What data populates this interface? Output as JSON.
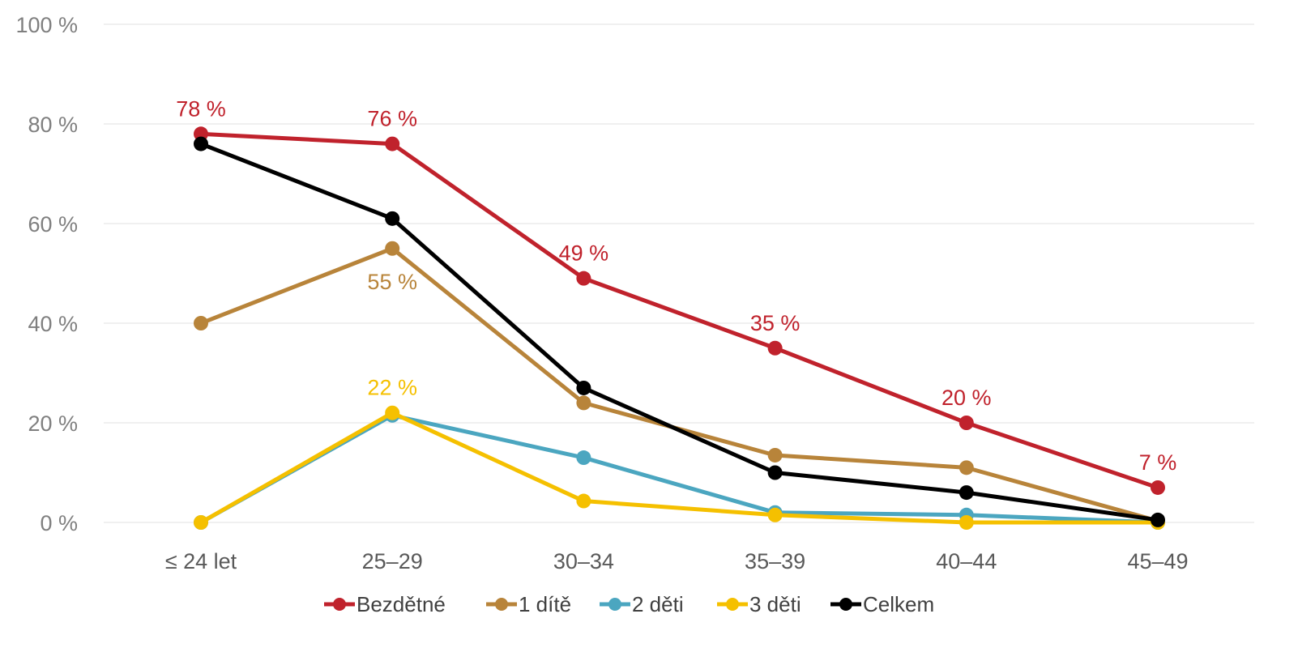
{
  "chart_data": {
    "type": "line",
    "title": "",
    "xlabel": "",
    "ylabel": "",
    "categories": [
      "≤ 24 let",
      "25–29",
      "30–34",
      "35–39",
      "40–44",
      "45–49"
    ],
    "ylim": [
      0,
      100
    ],
    "yticks": [
      0,
      20,
      40,
      60,
      80,
      100
    ],
    "ytick_labels": [
      "0 %",
      "20 %",
      "40 %",
      "60 %",
      "80 %",
      "100 %"
    ],
    "grid": true,
    "legend_position": "bottom",
    "series": [
      {
        "name": "Bezdětné",
        "color": "#c0222c",
        "values": [
          78,
          76,
          49,
          35,
          20,
          7
        ],
        "labels": [
          "78 %",
          "76 %",
          "49 %",
          "35 %",
          "20 %",
          "7 %"
        ]
      },
      {
        "name": "1 dítě",
        "color": "#b8843a",
        "values": [
          40,
          55,
          24,
          13.5,
          11,
          0.3
        ],
        "labels": [
          "",
          "55 %",
          "",
          "",
          "",
          ""
        ]
      },
      {
        "name": "2 děti",
        "color": "#4ba6c0",
        "values": [
          0,
          21.5,
          13,
          2,
          1.5,
          0
        ],
        "labels": [
          "",
          "",
          "",
          "",
          "",
          ""
        ]
      },
      {
        "name": "3 děti",
        "color": "#f5c000",
        "values": [
          0,
          22,
          4.3,
          1.5,
          0,
          0
        ],
        "labels": [
          "",
          "22 %",
          "",
          "",
          "",
          ""
        ]
      },
      {
        "name": "Celkem",
        "color": "#000000",
        "values": [
          76,
          61,
          27,
          10,
          6,
          0.5
        ],
        "labels": [
          "",
          "",
          "",
          "",
          "",
          ""
        ]
      }
    ]
  }
}
